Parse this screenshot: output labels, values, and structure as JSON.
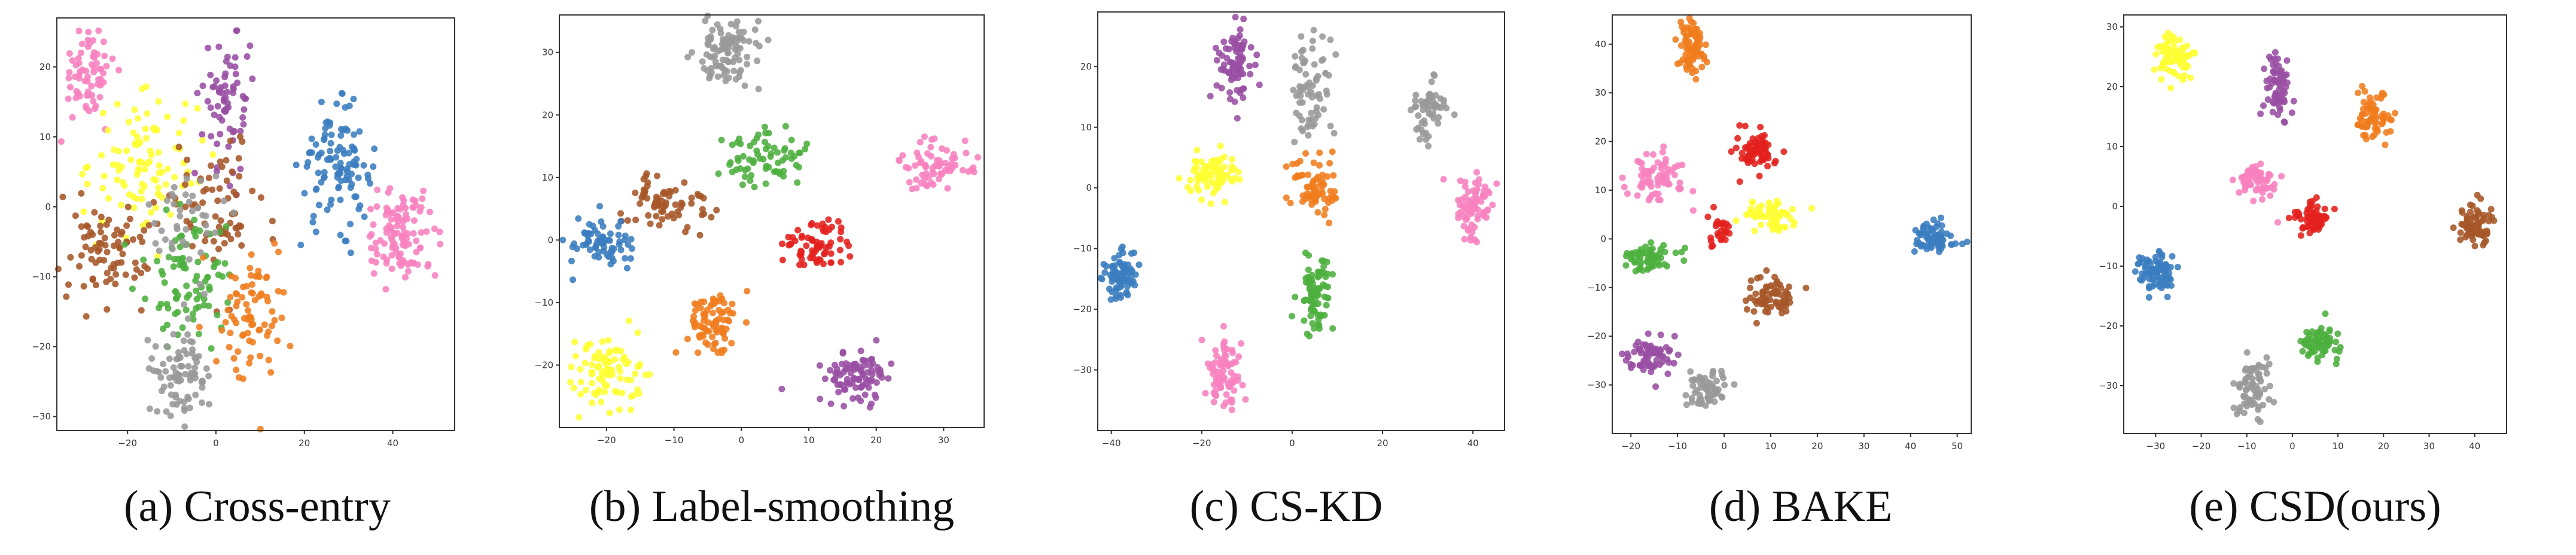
{
  "colors": {
    "blue": "#3a7dbf",
    "orange": "#f07c1c",
    "green": "#4caf3e",
    "red": "#e4201c",
    "purple": "#984ea3",
    "brown": "#a65628",
    "pink": "#f781bf",
    "gray": "#999999",
    "yellow": "#ffff33"
  },
  "chart_data": [
    {
      "type": "scatter",
      "caption": "(a) Cross-entry",
      "title": "",
      "xlabel": "",
      "ylabel": "",
      "xlim": [
        -36,
        54
      ],
      "ylim": [
        -32,
        27
      ],
      "xticks": [
        -20,
        0,
        20,
        40
      ],
      "yticks": [
        20,
        10,
        0,
        -10,
        -20,
        -30
      ],
      "clusters": [
        {
          "color": "pink",
          "cx": -29,
          "cy": 19,
          "sx": 3,
          "sy": 3.5,
          "n": 70
        },
        {
          "color": "purple",
          "cx": 3,
          "cy": 15,
          "sx": 3,
          "sy": 5,
          "n": 70
        },
        {
          "color": "blue",
          "cx": 27,
          "cy": 6,
          "sx": 4,
          "sy": 4,
          "n": 110
        },
        {
          "color": "pink",
          "cx": 42,
          "cy": -4,
          "sx": 4,
          "sy": 3,
          "n": 110
        },
        {
          "color": "yellow",
          "cx": -16,
          "cy": 6,
          "sx": 6,
          "sy": 5,
          "n": 100
        },
        {
          "color": "brown",
          "cx": -25,
          "cy": -6,
          "sx": 5,
          "sy": 4,
          "n": 80
        },
        {
          "color": "brown",
          "cx": 0,
          "cy": 0,
          "sx": 6,
          "sy": 5,
          "n": 70
        },
        {
          "color": "green",
          "cx": -6,
          "cy": -10,
          "sx": 5,
          "sy": 5,
          "n": 90
        },
        {
          "color": "orange",
          "cx": 9,
          "cy": -15,
          "sx": 4,
          "sy": 5,
          "n": 80
        },
        {
          "color": "gray",
          "cx": -8,
          "cy": -24,
          "sx": 3,
          "sy": 3,
          "n": 80
        },
        {
          "color": "gray",
          "cx": -6,
          "cy": -2,
          "sx": 4,
          "sy": 5,
          "n": 40
        }
      ]
    },
    {
      "type": "scatter",
      "caption": "(b) Label-smoothing",
      "title": "",
      "xlabel": "",
      "ylabel": "",
      "xlim": [
        -27,
        36
      ],
      "ylim": [
        -30,
        36
      ],
      "xticks": [
        -20,
        -10,
        0,
        10,
        20,
        30
      ],
      "yticks": [
        30,
        20,
        10,
        0,
        -10,
        -20
      ],
      "clusters": [
        {
          "color": "gray",
          "cx": -2,
          "cy": 30,
          "sx": 2.5,
          "sy": 3,
          "n": 100
        },
        {
          "color": "green",
          "cx": 4,
          "cy": 13,
          "sx": 3,
          "sy": 2.5,
          "n": 70
        },
        {
          "color": "brown",
          "cx": -11,
          "cy": 6,
          "sx": 3,
          "sy": 2.5,
          "n": 70
        },
        {
          "color": "pink",
          "cx": 29,
          "cy": 12,
          "sx": 2.5,
          "sy": 2,
          "n": 70
        },
        {
          "color": "blue",
          "cx": -21,
          "cy": -1,
          "sx": 2.5,
          "sy": 2,
          "n": 70
        },
        {
          "color": "red",
          "cx": 11,
          "cy": -1,
          "sx": 2.5,
          "sy": 2,
          "n": 70
        },
        {
          "color": "orange",
          "cx": -4,
          "cy": -13,
          "sx": 2,
          "sy": 2.5,
          "n": 80
        },
        {
          "color": "yellow",
          "cx": -20,
          "cy": -21,
          "sx": 2.5,
          "sy": 2.5,
          "n": 90
        },
        {
          "color": "purple",
          "cx": 17,
          "cy": -22,
          "sx": 2.5,
          "sy": 2,
          "n": 90
        }
      ]
    },
    {
      "type": "scatter",
      "caption": "(c) CS-KD",
      "title": "",
      "xlabel": "",
      "ylabel": "",
      "xlim": [
        -43,
        47
      ],
      "ylim": [
        -40,
        29
      ],
      "xticks": [
        -40,
        -20,
        0,
        20,
        40
      ],
      "yticks": [
        20,
        10,
        0,
        -10,
        -20,
        -30
      ],
      "clusters": [
        {
          "color": "purple",
          "cx": -13,
          "cy": 20,
          "sx": 2,
          "sy": 3,
          "n": 80
        },
        {
          "color": "gray",
          "cx": 4,
          "cy": 16,
          "sx": 2,
          "sy": 5,
          "n": 70
        },
        {
          "color": "gray",
          "cx": 30,
          "cy": 13,
          "sx": 2,
          "sy": 3,
          "n": 60
        },
        {
          "color": "yellow",
          "cx": -18,
          "cy": 2,
          "sx": 3,
          "sy": 2,
          "n": 80
        },
        {
          "color": "orange",
          "cx": 5,
          "cy": 0,
          "sx": 3,
          "sy": 3,
          "n": 70
        },
        {
          "color": "pink",
          "cx": 40,
          "cy": -3,
          "sx": 2,
          "sy": 2.5,
          "n": 80
        },
        {
          "color": "blue",
          "cx": -38,
          "cy": -14,
          "sx": 2,
          "sy": 2,
          "n": 80
        },
        {
          "color": "green",
          "cx": 5,
          "cy": -17,
          "sx": 2,
          "sy": 3,
          "n": 80
        },
        {
          "color": "pink",
          "cx": -15,
          "cy": -31,
          "sx": 2,
          "sy": 3,
          "n": 80
        }
      ]
    },
    {
      "type": "scatter",
      "caption": "(d) BAKE",
      "title": "",
      "xlabel": "",
      "ylabel": "",
      "xlim": [
        -24,
        53
      ],
      "ylim": [
        -40,
        46
      ],
      "xticks": [
        -20,
        -10,
        0,
        10,
        20,
        30,
        40,
        50
      ],
      "yticks": [
        40,
        30,
        20,
        10,
        0,
        -10,
        -20,
        -30
      ],
      "clusters": [
        {
          "color": "orange",
          "cx": -7,
          "cy": 39,
          "sx": 1.5,
          "sy": 3,
          "n": 80
        },
        {
          "color": "red",
          "cx": 7,
          "cy": 18,
          "sx": 2,
          "sy": 2,
          "n": 70
        },
        {
          "color": "pink",
          "cx": -14,
          "cy": 13,
          "sx": 3,
          "sy": 3,
          "n": 70
        },
        {
          "color": "yellow",
          "cx": 10,
          "cy": 5,
          "sx": 3,
          "sy": 1.5,
          "n": 60
        },
        {
          "color": "red",
          "cx": -1,
          "cy": 2,
          "sx": 1.5,
          "sy": 2,
          "n": 25
        },
        {
          "color": "blue",
          "cx": 45,
          "cy": 0,
          "sx": 2,
          "sy": 1.5,
          "n": 80
        },
        {
          "color": "green",
          "cx": -16,
          "cy": -4,
          "sx": 3,
          "sy": 1.5,
          "n": 60
        },
        {
          "color": "brown",
          "cx": 10,
          "cy": -12,
          "sx": 2.5,
          "sy": 2,
          "n": 70
        },
        {
          "color": "purple",
          "cx": -16,
          "cy": -24,
          "sx": 3,
          "sy": 2,
          "n": 70
        },
        {
          "color": "gray",
          "cx": -4,
          "cy": -31,
          "sx": 2,
          "sy": 2,
          "n": 60
        }
      ]
    },
    {
      "type": "scatter",
      "caption": "(e) CSD(ours)",
      "title": "",
      "xlabel": "",
      "ylabel": "",
      "xlim": [
        -37,
        47
      ],
      "ylim": [
        -38,
        32
      ],
      "xticks": [
        -30,
        -20,
        -10,
        0,
        10,
        20,
        30,
        40
      ],
      "yticks": [
        30,
        20,
        10,
        0,
        -10,
        -20,
        -30
      ],
      "clusters": [
        {
          "color": "yellow",
          "cx": -26,
          "cy": 25,
          "sx": 2,
          "sy": 2,
          "n": 70
        },
        {
          "color": "purple",
          "cx": -3,
          "cy": 20,
          "sx": 1.5,
          "sy": 3,
          "n": 70
        },
        {
          "color": "orange",
          "cx": 18,
          "cy": 15,
          "sx": 2,
          "sy": 2,
          "n": 70
        },
        {
          "color": "pink",
          "cx": -8,
          "cy": 4,
          "sx": 2.5,
          "sy": 1.5,
          "n": 60
        },
        {
          "color": "red",
          "cx": 4,
          "cy": -2,
          "sx": 2,
          "sy": 1.5,
          "n": 60
        },
        {
          "color": "brown",
          "cx": 40,
          "cy": -3,
          "sx": 2,
          "sy": 2,
          "n": 70
        },
        {
          "color": "blue",
          "cx": -30,
          "cy": -11,
          "sx": 2.5,
          "sy": 1.5,
          "n": 80
        },
        {
          "color": "green",
          "cx": 6,
          "cy": -23,
          "sx": 2.5,
          "sy": 1.5,
          "n": 70
        },
        {
          "color": "gray",
          "cx": -9,
          "cy": -30,
          "sx": 2,
          "sy": 2.5,
          "n": 70
        }
      ]
    }
  ]
}
